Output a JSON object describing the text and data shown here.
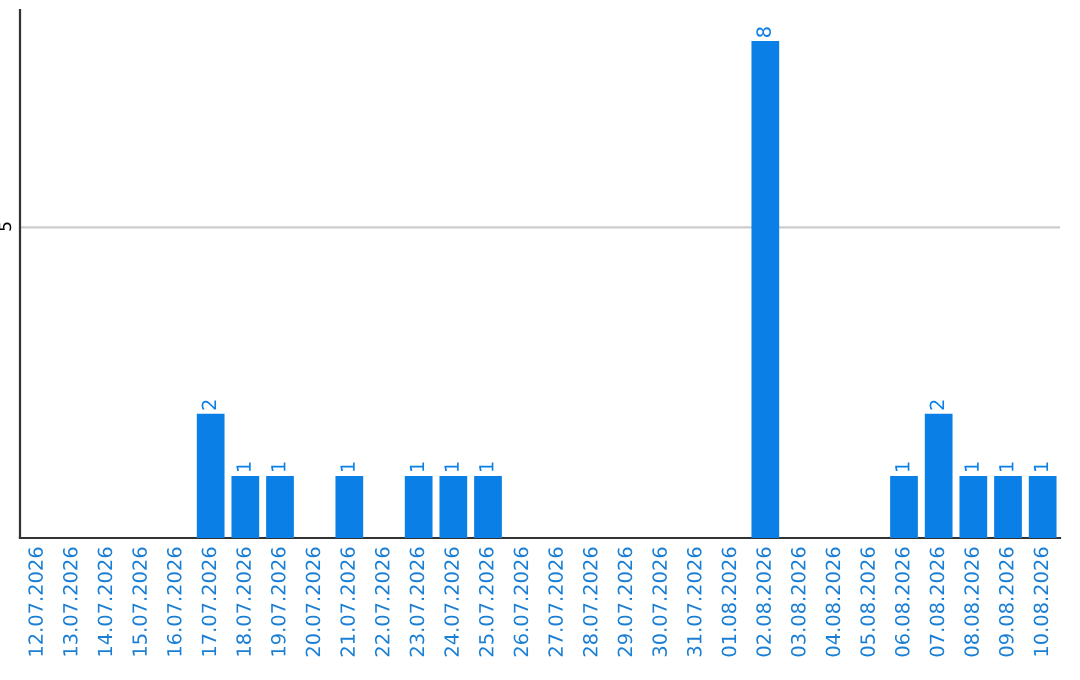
{
  "chart_data": {
    "type": "bar",
    "categories": [
      "12.07.2026",
      "13.07.2026",
      "14.07.2026",
      "15.07.2026",
      "16.07.2026",
      "17.07.2026",
      "18.07.2026",
      "19.07.2026",
      "20.07.2026",
      "21.07.2026",
      "22.07.2026",
      "23.07.2026",
      "24.07.2026",
      "25.07.2026",
      "26.07.2026",
      "27.07.2026",
      "28.07.2026",
      "29.07.2026",
      "30.07.2026",
      "31.07.2026",
      "01.08.2026",
      "02.08.2026",
      "03.08.2026",
      "04.08.2026",
      "05.08.2026",
      "06.08.2026",
      "07.08.2026",
      "08.08.2026",
      "09.08.2026",
      "10.08.2026"
    ],
    "values": [
      0,
      0,
      0,
      0,
      0,
      2,
      1,
      1,
      0,
      1,
      0,
      1,
      1,
      1,
      0,
      0,
      0,
      0,
      0,
      0,
      0,
      8,
      0,
      0,
      0,
      1,
      2,
      1,
      1,
      1
    ],
    "color": "#0a7fe6",
    "ylim": [
      0,
      8.5
    ],
    "yticks": [
      5
    ],
    "grid": "y",
    "value_labels": [
      null,
      null,
      null,
      null,
      null,
      "2",
      "1",
      "1",
      null,
      "1",
      null,
      "1",
      "1",
      "1",
      null,
      null,
      null,
      null,
      null,
      null,
      null,
      "8",
      null,
      null,
      null,
      "1",
      "2",
      "1",
      "1",
      "1"
    ]
  }
}
